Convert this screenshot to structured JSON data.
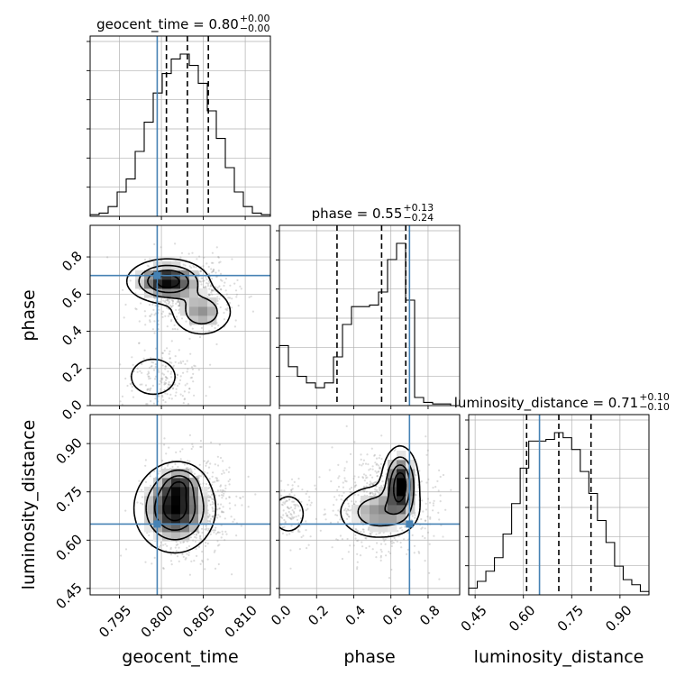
{
  "chart_data": {
    "type": "corner",
    "parameters": [
      "geocent_time",
      "phase",
      "luminosity_distance"
    ],
    "truths": {
      "geocent_time": 0.7995,
      "phase": 0.7,
      "luminosity_distance": 0.65
    },
    "titles": [
      {
        "param": "geocent_time",
        "label": "geocent_time = 0.80",
        "plus": "+0.00",
        "minus": "−0.00"
      },
      {
        "param": "phase",
        "label": "phase = 0.55",
        "plus": "+0.13",
        "minus": "−0.24"
      },
      {
        "param": "luminosity_distance",
        "label": "luminosity_distance = 0.71",
        "plus": "+0.10",
        "minus": "−0.10"
      }
    ],
    "ranges": {
      "geocent_time": [
        0.7915,
        0.813
      ],
      "phase": [
        0.0,
        0.97
      ],
      "luminosity_distance": [
        0.43,
        0.99
      ]
    },
    "ticks": {
      "geocent_time": {
        "values": [
          0.795,
          0.8,
          0.805,
          0.81
        ],
        "labels": [
          "0.795",
          "0.800",
          "0.805",
          "0.810"
        ]
      },
      "phase": {
        "values": [
          0.0,
          0.2,
          0.4,
          0.6,
          0.8
        ],
        "labels": [
          "0.0",
          "0.2",
          "0.4",
          "0.6",
          "0.8"
        ]
      },
      "luminosity_distance": {
        "values": [
          0.45,
          0.6,
          0.75,
          0.9
        ],
        "labels": [
          "0.45",
          "0.60",
          "0.75",
          "0.90"
        ]
      }
    },
    "quantiles": {
      "geocent_time": [
        0.8006,
        0.8031,
        0.8056
      ],
      "phase": [
        0.31,
        0.55,
        0.68
      ],
      "luminosity_distance": [
        0.61,
        0.71,
        0.81
      ]
    },
    "histograms": {
      "geocent_time": [
        0.01,
        0.02,
        0.06,
        0.15,
        0.23,
        0.4,
        0.58,
        0.76,
        0.88,
        0.97,
        1.0,
        0.93,
        0.82,
        0.65,
        0.48,
        0.3,
        0.15,
        0.06,
        0.02,
        0.01
      ],
      "phase": [
        0.37,
        0.24,
        0.18,
        0.14,
        0.11,
        0.14,
        0.3,
        0.5,
        0.61,
        0.61,
        0.62,
        0.7,
        0.9,
        1.0,
        0.65,
        0.05,
        0.02,
        0.01,
        0.01,
        0.0
      ],
      "luminosity_distance": [
        0.04,
        0.08,
        0.14,
        0.22,
        0.36,
        0.54,
        0.75,
        0.91,
        0.91,
        0.92,
        0.96,
        0.93,
        0.86,
        0.73,
        0.6,
        0.44,
        0.31,
        0.17,
        0.09,
        0.06,
        0.02
      ]
    },
    "grid": true
  }
}
